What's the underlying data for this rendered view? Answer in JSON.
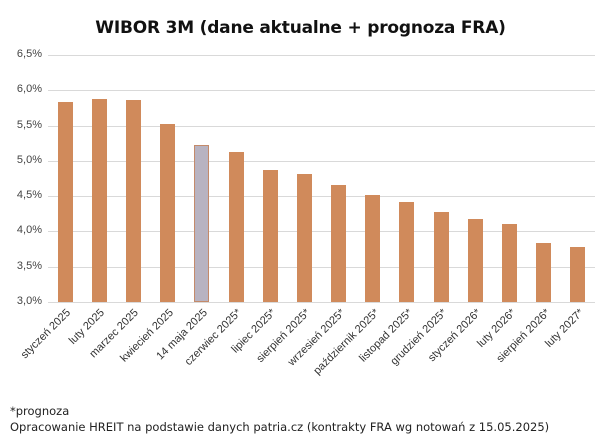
{
  "chart_data": {
    "type": "bar",
    "title": "WIBOR 3M (dane aktualne + prognoza FRA)",
    "xlabel": "",
    "ylabel": "",
    "ylim": [
      3.0,
      6.5
    ],
    "yticks": [
      "3,0%",
      "3,5%",
      "4,0%",
      "4,5%",
      "5,0%",
      "5,5%",
      "6,0%",
      "6,5%"
    ],
    "grid": true,
    "legend": null,
    "categories": [
      "styczeń 2025",
      "luty 2025",
      "marzec 2025",
      "kwiecień 2025",
      "14 maja 2025",
      "czerwiec 2025*",
      "lipiec 2025*",
      "sierpień 2025*",
      "wrzesień 2025*",
      "październik 2025*",
      "listopad 2025*",
      "grudzień 2025*",
      "styczeń 2026*",
      "luty 2026*",
      "sierpień 2026*",
      "luty 2027*"
    ],
    "values": [
      5.84,
      5.87,
      5.86,
      5.52,
      5.22,
      5.12,
      4.87,
      4.81,
      4.66,
      4.52,
      4.41,
      4.28,
      4.18,
      4.11,
      3.84,
      3.78
    ],
    "highlight_index": 4,
    "colors": {
      "bar": "#d08a5b",
      "highlight": "#b8b3c1",
      "highlight_border": "#c48a6a",
      "grid": "#d9d9d9"
    }
  },
  "footnotes": {
    "note": "*prognoza",
    "source": "Opracowanie HREIT na podstawie danych patria.cz (kontrakty FRA wg notowań z 15.05.2025)"
  }
}
